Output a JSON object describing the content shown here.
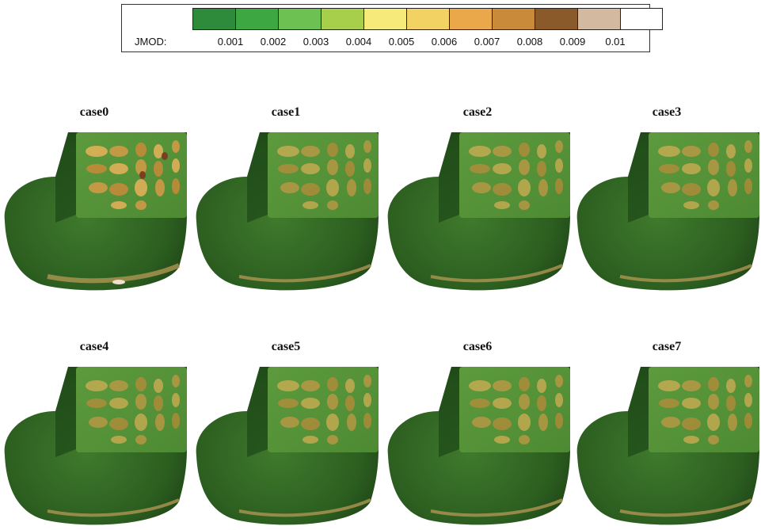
{
  "legend": {
    "label": "JMOD:",
    "ticks": [
      "0.001",
      "0.002",
      "0.003",
      "0.004",
      "0.005",
      "0.006",
      "0.007",
      "0.008",
      "0.009",
      "0.01"
    ],
    "colors": [
      "#2e8b3c",
      "#3da842",
      "#6cc152",
      "#a8cf4c",
      "#f5ea7a",
      "#f3d264",
      "#eba84a",
      "#c98a3a",
      "#8a5a2a",
      "#d2b9a0",
      "#ffffff"
    ]
  },
  "panels": [
    {
      "title": "case0"
    },
    {
      "title": "case1"
    },
    {
      "title": "case2"
    },
    {
      "title": "case3"
    },
    {
      "title": "case4"
    },
    {
      "title": "case5"
    },
    {
      "title": "case6"
    },
    {
      "title": "case7"
    }
  ]
}
